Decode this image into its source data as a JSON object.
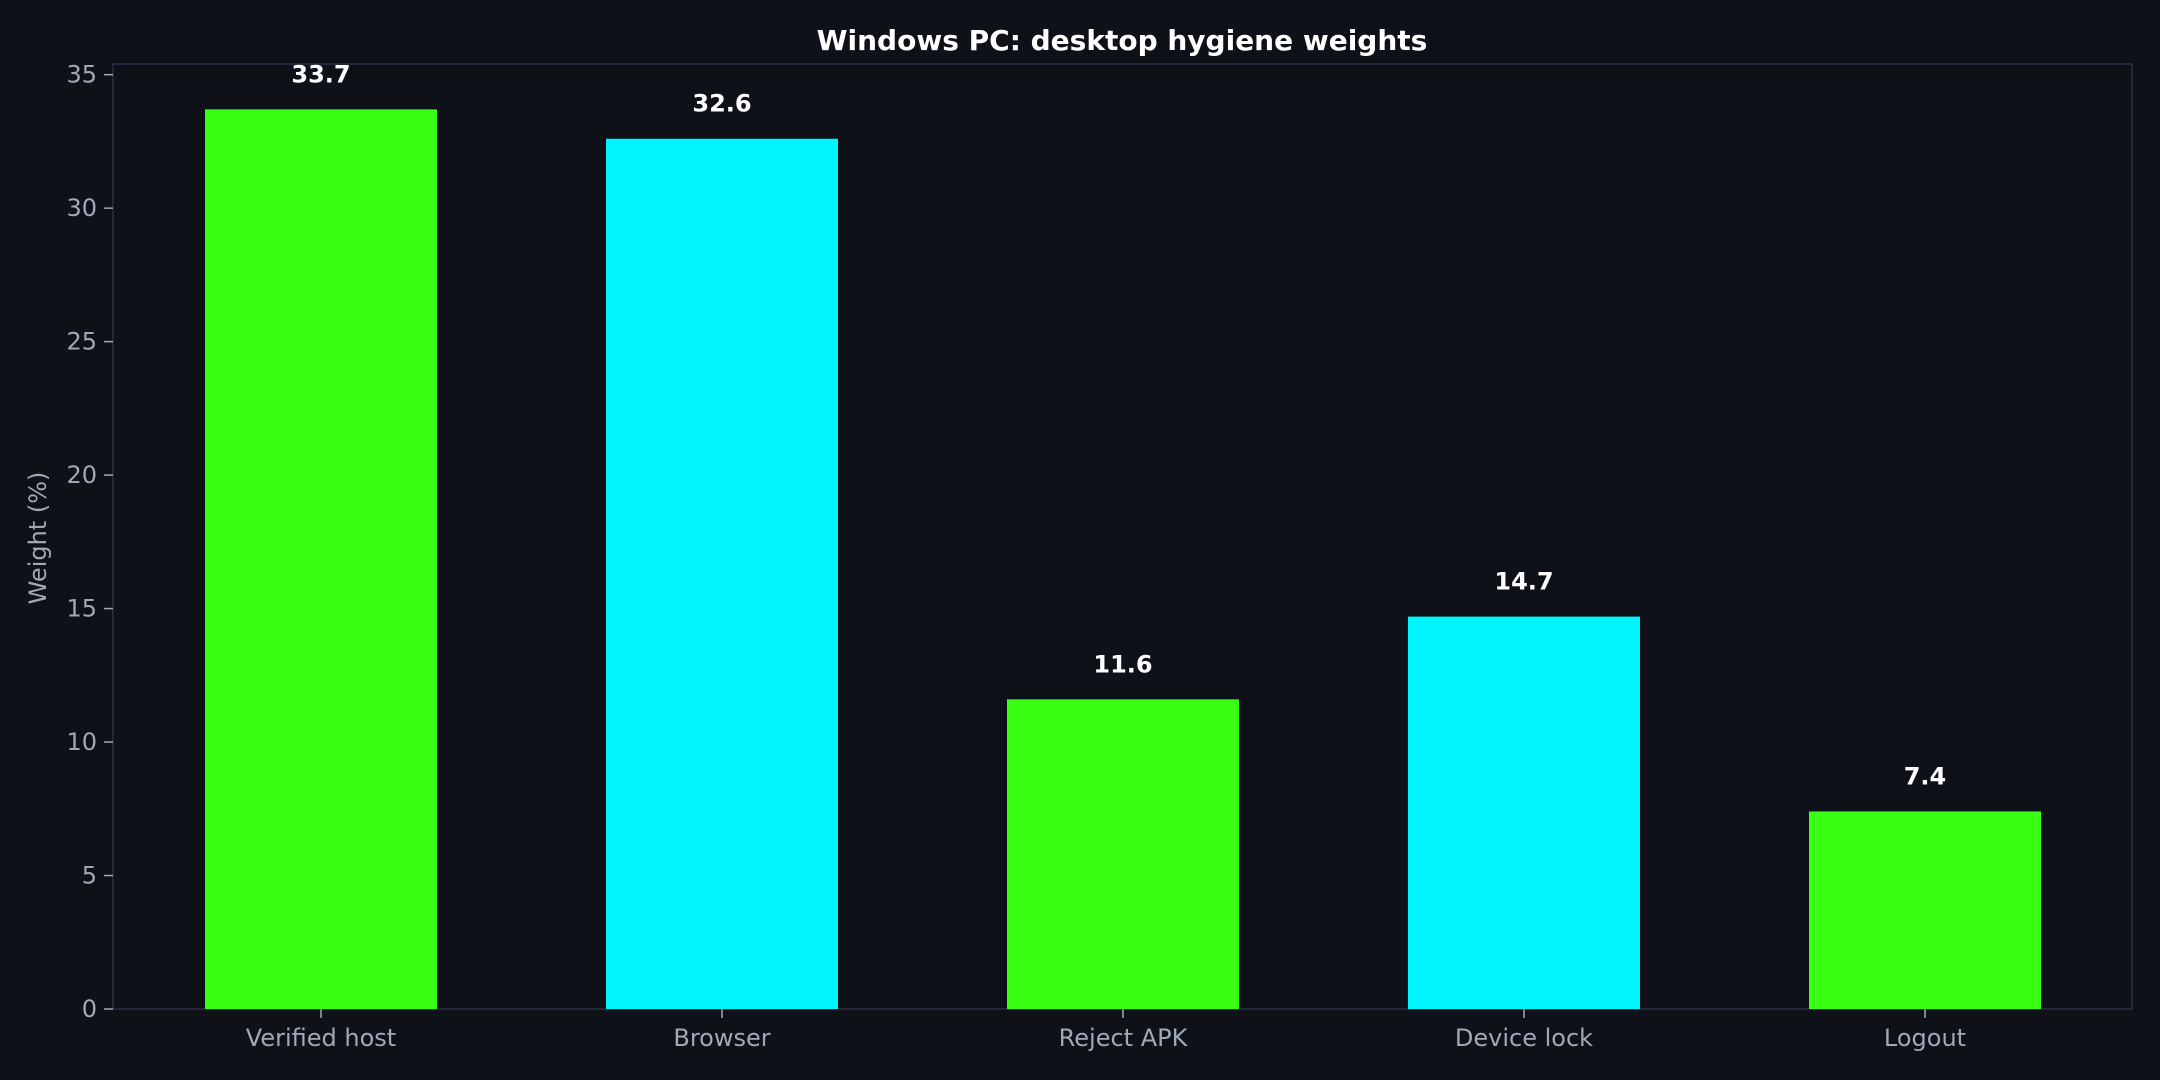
{
  "chart_data": {
    "type": "bar",
    "title": "Windows PC: desktop hygiene weights",
    "xlabel": "",
    "ylabel": "Weight (%)",
    "categories": [
      "Verified host",
      "Browser",
      "Reject APK",
      "Device lock",
      "Logout"
    ],
    "values": [
      33.7,
      32.6,
      11.6,
      14.7,
      7.4
    ],
    "value_labels": [
      "33.7",
      "32.6",
      "11.6",
      "14.7",
      "7.4"
    ],
    "bar_colors": [
      "#39ff14",
      "#00f5ff",
      "#39ff14",
      "#00f5ff",
      "#39ff14"
    ],
    "ylim": [
      0,
      35.4
    ],
    "yticks": [
      0,
      5,
      10,
      15,
      20,
      25,
      30,
      35
    ],
    "ytick_labels": [
      "0",
      "5",
      "10",
      "15",
      "20",
      "25",
      "30",
      "35"
    ],
    "grid": false,
    "legend": "none"
  },
  "colors": {
    "background": "#0e1117",
    "axes_frame": "#2a2f45",
    "tick_label": "#a0a8b8",
    "title": "#ffffff",
    "value_label": "#ffffff"
  }
}
